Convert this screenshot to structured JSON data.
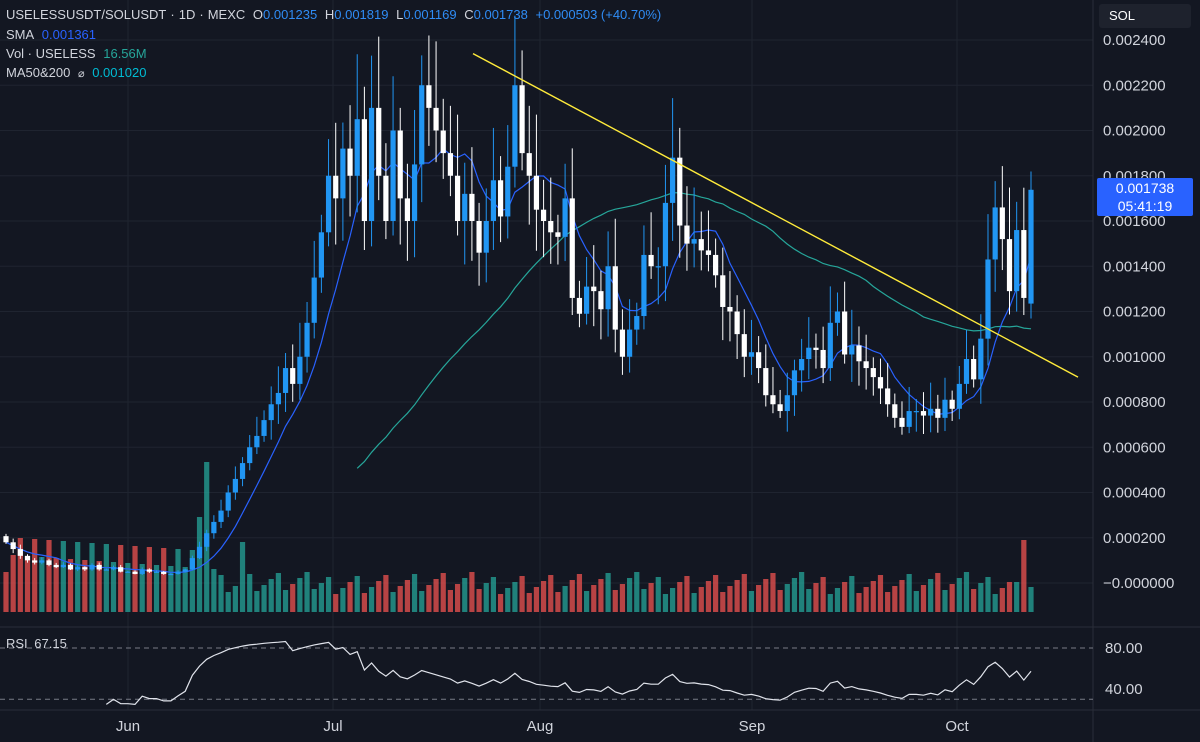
{
  "header": {
    "symbol": "USELESSUSDT/SOLUSDT",
    "interval": "1D",
    "exchange": "MEXC",
    "open_label": "O",
    "open": "0.001235",
    "high_label": "H",
    "high": "0.001819",
    "low_label": "L",
    "low": "0.001169",
    "close_label": "C",
    "close": "0.001738",
    "change": "+0.000503 (+40.70%)"
  },
  "indicators": {
    "sma_label": "SMA",
    "sma_value": "0.001361",
    "vol_label": "Vol · USELESS",
    "vol_value": "16.56M",
    "ma_label": "MA50&200",
    "ma_value": "0.001020"
  },
  "quote_badge": "SOL",
  "price_tag": {
    "price": "0.001738",
    "countdown": "05:41:19"
  },
  "rsi": {
    "label": "RSI",
    "value": "67.15",
    "upper_level": 80,
    "lower_level": 40,
    "levels_shown": [
      "80.00",
      "40.00"
    ]
  },
  "colors": {
    "up": "#2196f3",
    "down": "#ffffff",
    "vol_up": "#26a69a",
    "vol_down": "#ef5350",
    "sma": "#2962ff",
    "ma50": "#26a69a",
    "trendline": "#ffeb3b",
    "background": "#131722"
  },
  "chart_data": {
    "type": "candlestick",
    "price_axis_ticks": [
      "0.002400",
      "0.002200",
      "0.002000",
      "0.001800",
      "0.001600",
      "0.001400",
      "0.001200",
      "0.001000",
      "0.000800",
      "0.000600",
      "0.000400",
      "0.000200",
      "−0.000000"
    ],
    "ylim": [
      0,
      0.0024
    ],
    "time_axis_labels": [
      "Jun",
      "Jul",
      "Aug",
      "Sep",
      "Oct"
    ],
    "key_points": [
      {
        "date": "Jun 25",
        "close": 6e-05
      },
      {
        "date": "Jul 14",
        "high": 0.00231
      },
      {
        "date": "Jul 28",
        "high": 0.00226
      },
      {
        "date": "Aug 16",
        "high": 0.00196
      },
      {
        "date": "Sep 07",
        "low": 0.00077
      },
      {
        "date": "Sep 27",
        "low": 0.00068
      },
      {
        "date": "Oct 09",
        "open": 0.001235,
        "high": 0.001819,
        "low": 0.001169,
        "close": 0.001738
      }
    ],
    "closes": [
      0.00018,
      0.00015,
      0.00012,
      0.0001,
      9e-05,
      0.0001,
      8e-05,
      7e-05,
      8e-05,
      6e-05,
      7e-05,
      6e-05,
      8e-05,
      6e-05,
      6e-05,
      7e-05,
      5e-05,
      5e-05,
      4e-05,
      6e-05,
      5e-05,
      5e-05,
      4e-05,
      4e-05,
      5e-05,
      6e-05,
      0.00011,
      0.00016,
      0.00022,
      0.00027,
      0.00032,
      0.0004,
      0.00046,
      0.00053,
      0.0006,
      0.00065,
      0.00072,
      0.00079,
      0.00084,
      0.00095,
      0.00088,
      0.001,
      0.00115,
      0.00135,
      0.00155,
      0.0018,
      0.0017,
      0.00192,
      0.0018,
      0.00205,
      0.0016,
      0.0021,
      0.0018,
      0.0016,
      0.002,
      0.0017,
      0.0016,
      0.00185,
      0.0022,
      0.0021,
      0.002,
      0.0019,
      0.0018,
      0.0016,
      0.00172,
      0.0016,
      0.00146,
      0.0016,
      0.00178,
      0.00162,
      0.00184,
      0.0022,
      0.0019,
      0.0018,
      0.00165,
      0.0016,
      0.00155,
      0.00153,
      0.0017,
      0.00126,
      0.00119,
      0.00131,
      0.00129,
      0.00121,
      0.0014,
      0.00112,
      0.001,
      0.00112,
      0.00118,
      0.00145,
      0.0014,
      0.0014,
      0.00168,
      0.00188,
      0.00158,
      0.0015,
      0.00152,
      0.00147,
      0.00145,
      0.00136,
      0.00122,
      0.0012,
      0.0011,
      0.001,
      0.00102,
      0.00095,
      0.00083,
      0.00079,
      0.00076,
      0.00083,
      0.00094,
      0.00099,
      0.00104,
      0.00103,
      0.00095,
      0.00115,
      0.0012,
      0.00101,
      0.00105,
      0.00098,
      0.00095,
      0.00091,
      0.00086,
      0.00079,
      0.00073,
      0.00069,
      0.00076,
      0.00076,
      0.00074,
      0.00077,
      0.00073,
      0.00081,
      0.00077,
      0.00088,
      0.00099,
      0.0009,
      0.00108,
      0.00143,
      0.00166,
      0.00152,
      0.00129,
      0.00156,
      0.00126,
      0.001738
    ],
    "sma_label": "SMA",
    "ma50_label": "MA50",
    "trendline": {
      "from": {
        "date": "Jul 24",
        "price": 0.00234
      },
      "to": {
        "date": "Oct 15",
        "price": 0.00091
      }
    }
  }
}
